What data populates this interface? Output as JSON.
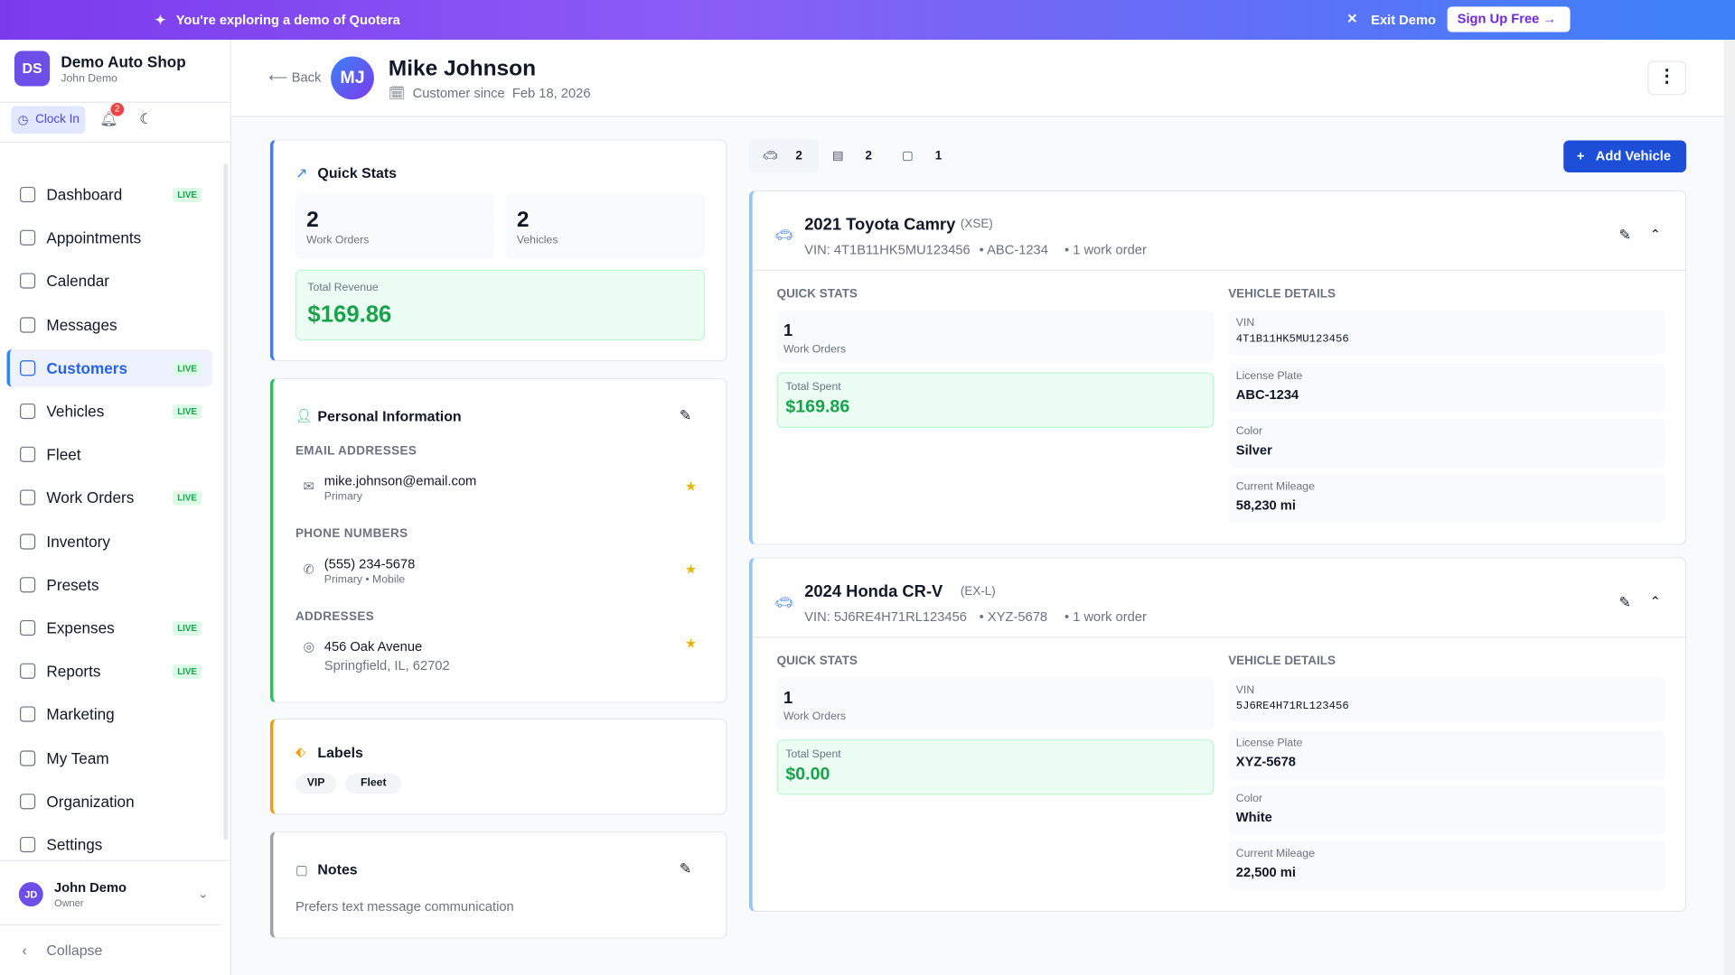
{
  "banner": {
    "message": "You're exploring a demo of Quotera",
    "exit": "Exit Demo",
    "signup": "Sign Up Free"
  },
  "sidebar": {
    "initials": "DS",
    "shop": "Demo Auto Shop",
    "user": "John Demo",
    "clock_in": "Clock In",
    "notifications": 2,
    "nav": [
      {
        "label": "Dashboard",
        "badge": "LIVE"
      },
      {
        "label": "Appointments"
      },
      {
        "label": "Calendar"
      },
      {
        "label": "Messages"
      },
      {
        "label": "Customers",
        "badge": "LIVE",
        "active": true
      },
      {
        "label": "Vehicles",
        "badge": "LIVE"
      },
      {
        "label": "Fleet"
      },
      {
        "label": "Work Orders",
        "badge": "LIVE"
      },
      {
        "label": "Inventory"
      },
      {
        "label": "Presets"
      },
      {
        "label": "Expenses",
        "badge": "LIVE"
      },
      {
        "label": "Reports",
        "badge": "LIVE"
      },
      {
        "label": "Marketing"
      },
      {
        "label": "My Team"
      },
      {
        "label": "Organization"
      },
      {
        "label": "Settings"
      }
    ],
    "profile": {
      "initials": "JD",
      "name": "John Demo",
      "role": "Owner"
    },
    "collapse": "Collapse"
  },
  "header": {
    "back": "Back",
    "initials": "MJ",
    "name": "Mike Johnson",
    "since_label": "Customer since",
    "since": "Feb 18, 2026"
  },
  "quick_stats": {
    "title": "Quick Stats",
    "stats": [
      {
        "value": 2,
        "label": "Work Orders"
      },
      {
        "value": 2,
        "label": "Vehicles"
      }
    ],
    "revenue_label": "Total Revenue",
    "revenue": "$169.86"
  },
  "personal": {
    "title": "Personal Information",
    "email_heading": "EMAIL ADDRESSES",
    "email": "mike.johnson@email.com",
    "email_tag": "Primary",
    "phone_heading": "PHONE NUMBERS",
    "phone": "(555) 234-5678",
    "phone_tag": "Primary • Mobile",
    "address_heading": "ADDRESSES",
    "address1": "456 Oak Avenue",
    "address2": "Springfield, IL, 62702"
  },
  "labels": {
    "title": "Labels",
    "items": [
      "VIP",
      "Fleet"
    ]
  },
  "notes": {
    "title": "Notes",
    "text": "Prefers text message communication"
  },
  "tabs": [
    2,
    2,
    1
  ],
  "add_vehicle": "Add Vehicle",
  "vehicles": [
    {
      "name": "2021 Toyota Camry",
      "trim": "(XSE)",
      "vin_line": "VIN: 4T1B11HK5MU123456",
      "plate_line": "• ABC-1234",
      "orders_line": "• 1 work order",
      "stats_heading": "QUICK STATS",
      "work_orders": 1,
      "work_orders_label": "Work Orders",
      "spent_label": "Total Spent",
      "spent": "$169.86",
      "details_heading": "VEHICLE DETAILS",
      "details": [
        {
          "label": "VIN",
          "value": "4T1B11HK5MU123456"
        },
        {
          "label": "License Plate",
          "value": "ABC-1234"
        },
        {
          "label": "Color",
          "value": "Silver"
        },
        {
          "label": "Current Mileage",
          "value": "58,230 mi"
        }
      ]
    },
    {
      "name": "2024 Honda CR-V",
      "trim": "(EX-L)",
      "vin_line": "VIN: 5J6RE4H71RL123456",
      "plate_line": "• XYZ-5678",
      "orders_line": "• 1 work order",
      "stats_heading": "QUICK STATS",
      "work_orders": 1,
      "work_orders_label": "Work Orders",
      "spent_label": "Total Spent",
      "spent": "$0.00",
      "details_heading": "VEHICLE DETAILS",
      "details": [
        {
          "label": "VIN",
          "value": "5J6RE4H71RL123456"
        },
        {
          "label": "License Plate",
          "value": "XYZ-5678"
        },
        {
          "label": "Color",
          "value": "White"
        },
        {
          "label": "Current Mileage",
          "value": "22,500 mi"
        }
      ]
    }
  ]
}
